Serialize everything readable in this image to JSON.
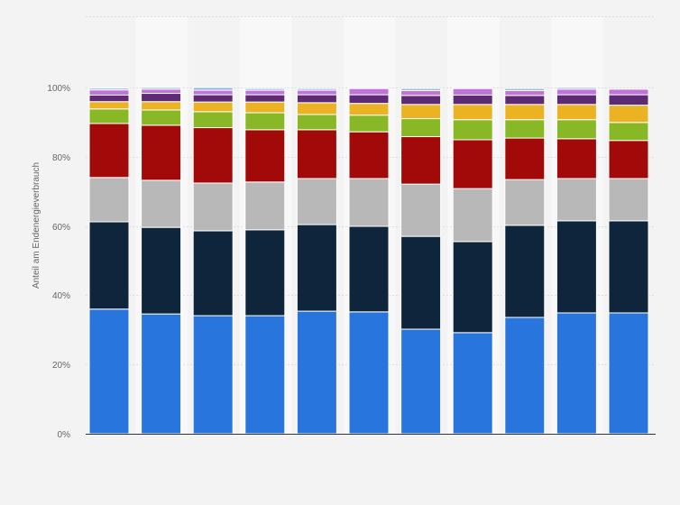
{
  "chart_data": {
    "type": "bar",
    "stacked": true,
    "title": "",
    "xlabel": "",
    "ylabel": "Anteil am Endenergieverbrauch",
    "ylim": [
      0,
      100
    ],
    "y_ticks": [
      "0%",
      "20%",
      "40%",
      "60%",
      "80%",
      "100%"
    ],
    "grid": true,
    "categories": [
      "",
      "",
      "",
      "",
      "",
      "",
      "",
      "",
      "",
      "",
      ""
    ],
    "series": [
      {
        "color": "#2876dd",
        "values": [
          36.0,
          34.6,
          34.1,
          34.1,
          35.4,
          35.2,
          30.2,
          29.2,
          33.6,
          34.9,
          34.9
        ]
      },
      {
        "color": "#0f253c",
        "values": [
          25.2,
          25.0,
          24.5,
          24.8,
          25.0,
          24.7,
          26.8,
          26.3,
          26.6,
          26.6,
          26.6
        ]
      },
      {
        "color": "#b8b8b8",
        "values": [
          12.8,
          13.6,
          13.8,
          13.8,
          13.3,
          13.8,
          15.1,
          15.3,
          13.2,
          12.2,
          12.2
        ]
      },
      {
        "color": "#a20a0a",
        "values": [
          15.6,
          15.9,
          16.0,
          15.1,
          14.1,
          13.5,
          13.7,
          14.1,
          12.0,
          11.5,
          11.0
        ]
      },
      {
        "color": "#88b825",
        "values": [
          4.2,
          4.4,
          4.6,
          4.9,
          4.4,
          4.8,
          5.2,
          5.8,
          5.3,
          5.5,
          5.2
        ]
      },
      {
        "color": "#ebb324",
        "values": [
          2.1,
          2.4,
          2.8,
          3.1,
          3.4,
          3.4,
          4.1,
          4.4,
          4.4,
          4.4,
          5.0
        ]
      },
      {
        "color": "#5c2b73",
        "values": [
          1.9,
          2.4,
          2.1,
          2.1,
          2.3,
          2.5,
          2.6,
          2.7,
          2.6,
          2.8,
          3.0
        ]
      },
      {
        "color": "#c074d9",
        "values": [
          1.5,
          1.2,
          1.3,
          1.3,
          1.3,
          1.8,
          1.4,
          1.9,
          1.4,
          1.6,
          1.6
        ]
      },
      {
        "color": "#8fb8ea",
        "values": [
          0.5,
          0.5,
          0.8,
          0.5,
          0.5,
          0.3,
          0.6,
          0.3,
          0.6,
          0.5,
          0.0
        ]
      }
    ]
  }
}
